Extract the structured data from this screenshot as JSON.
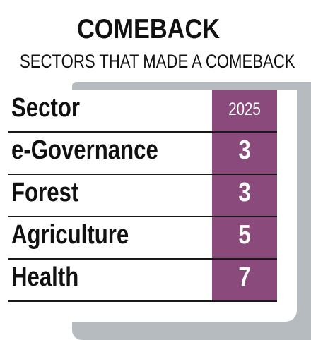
{
  "chart_data": {
    "type": "table",
    "title": "COMEBACK",
    "subtitle": "SECTORS THAT MADE A COMEBACK",
    "header": {
      "label": "Sector",
      "year": "2025"
    },
    "rows": [
      {
        "sector": "e-Governance",
        "value": "3"
      },
      {
        "sector": "Forest",
        "value": "3"
      },
      {
        "sector": "Agriculture",
        "value": "5"
      },
      {
        "sector": "Health",
        "value": "7"
      }
    ],
    "colors": {
      "accent": "#8a4a7c",
      "shadow": "#b6bbbf"
    }
  }
}
